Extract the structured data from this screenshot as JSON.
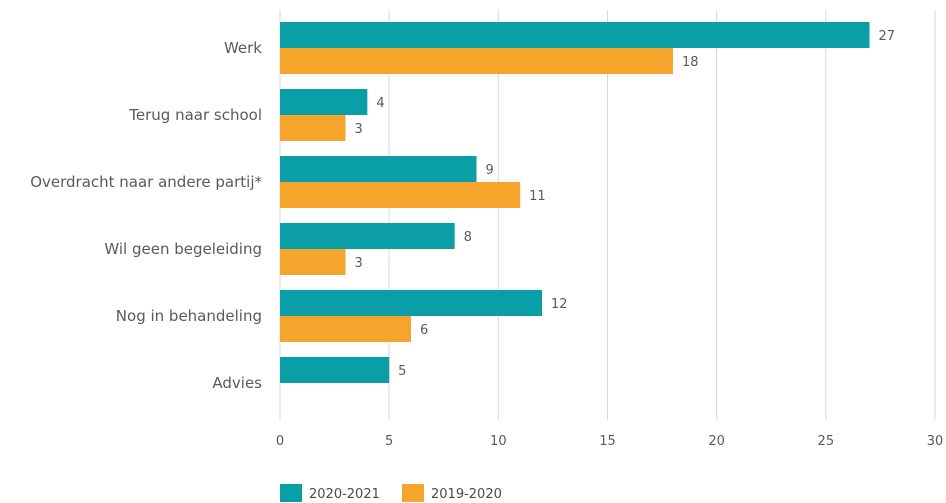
{
  "chart_data": {
    "type": "bar",
    "orientation": "horizontal",
    "title": "",
    "xlabel": "",
    "ylabel": "",
    "categories": [
      "Werk",
      "Terug naar school",
      "Overdracht naar andere partij*",
      "Wil geen begeleiding",
      "Nog in behandeling",
      "Advies"
    ],
    "series": [
      {
        "name": "2020-2021",
        "color": "#0a9ea6",
        "values": [
          27,
          4,
          9,
          8,
          12,
          5
        ]
      },
      {
        "name": "2019-2020",
        "color": "#f5a52c",
        "values": [
          18,
          3,
          11,
          3,
          6,
          null
        ]
      }
    ],
    "xlim": [
      0,
      30
    ],
    "xticks": [
      0,
      5,
      10,
      15,
      20,
      25,
      30
    ],
    "grid": true,
    "legend_position": "bottom-left"
  }
}
